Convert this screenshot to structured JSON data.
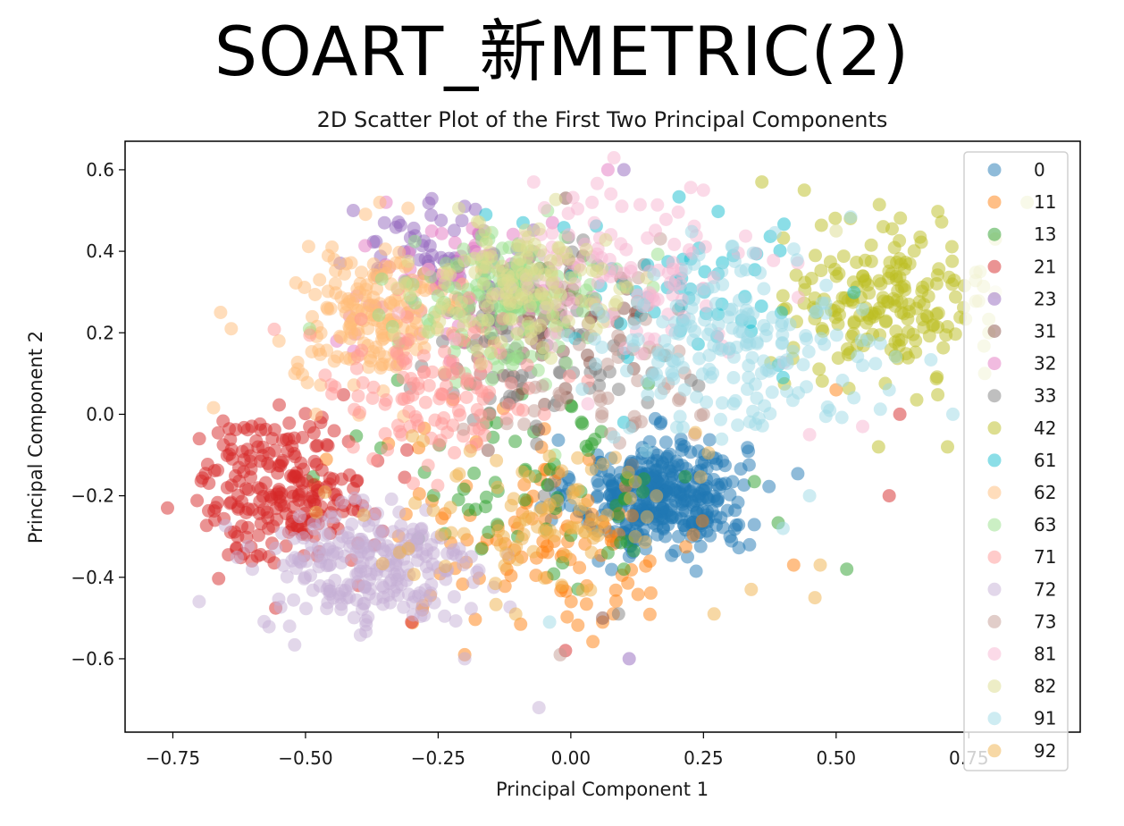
{
  "page_title": "SOART_新METRIC(2)",
  "chart_data": {
    "type": "scatter",
    "title": "2D Scatter Plot of the First Two Principal Components",
    "xlabel": "Principal Component 1",
    "ylabel": "Principal Component 2",
    "xlim": [
      -0.84,
      0.96
    ],
    "ylim": [
      -0.78,
      0.67
    ],
    "xticks": [
      -0.75,
      -0.5,
      -0.25,
      0.0,
      0.25,
      0.5,
      0.75
    ],
    "xtick_labels": [
      "−0.75",
      "−0.50",
      "−0.25",
      "0.00",
      "0.25",
      "0.50",
      "0.75"
    ],
    "yticks": [
      -0.6,
      -0.4,
      -0.2,
      0.0,
      0.2,
      0.4,
      0.6
    ],
    "ytick_labels": [
      "−0.6",
      "−0.4",
      "−0.2",
      "0.0",
      "0.2",
      "0.4",
      "0.6"
    ],
    "grid": false,
    "legend_position": "right",
    "marker_alpha": 0.5,
    "series": [
      {
        "name": "0",
        "color": "#1f77b4",
        "cluster": {
          "cx": 0.17,
          "cy": -0.2,
          "sx": 0.08,
          "sy": 0.07,
          "n": 360
        },
        "points": [
          [
            0.05,
            -0.1
          ],
          [
            0.12,
            -0.3
          ],
          [
            0.28,
            -0.18
          ],
          [
            0.3,
            -0.3
          ],
          [
            0.22,
            -0.35
          ],
          [
            -0.02,
            -0.2
          ]
        ]
      },
      {
        "name": "11",
        "color": "#ff7f0e",
        "cluster": {
          "cx": -0.05,
          "cy": -0.3,
          "sx": 0.16,
          "sy": 0.12,
          "n": 110
        },
        "points": [
          [
            -0.2,
            -0.59
          ],
          [
            0.08,
            -0.49
          ],
          [
            0.06,
            -0.51
          ],
          [
            0.42,
            -0.37
          ],
          [
            0.5,
            0.06
          ],
          [
            -0.28,
            -0.48
          ]
        ]
      },
      {
        "name": "13",
        "color": "#2ca02c",
        "cluster": {
          "cx": -0.05,
          "cy": -0.15,
          "sx": 0.15,
          "sy": 0.13,
          "n": 70
        },
        "points": [
          [
            0.52,
            -0.38
          ],
          [
            0.07,
            -0.34
          ],
          [
            0.1,
            -0.38
          ],
          [
            -0.1,
            -0.3
          ]
        ]
      },
      {
        "name": "21",
        "color": "#d62728",
        "cluster": {
          "cx": -0.54,
          "cy": -0.18,
          "sx": 0.08,
          "sy": 0.09,
          "n": 230
        },
        "points": [
          [
            -0.76,
            -0.23
          ],
          [
            -0.7,
            -0.06
          ],
          [
            -0.63,
            -0.33
          ],
          [
            -0.4,
            -0.42
          ],
          [
            -0.01,
            -0.58
          ],
          [
            0.6,
            -0.2
          ],
          [
            0.62,
            0.0
          ],
          [
            -0.3,
            -0.51
          ]
        ]
      },
      {
        "name": "23",
        "color": "#9467bd",
        "cluster": {
          "cx": -0.25,
          "cy": 0.4,
          "sx": 0.08,
          "sy": 0.05,
          "n": 55
        },
        "points": [
          [
            -0.41,
            0.5
          ],
          [
            -0.2,
            0.51
          ],
          [
            0.1,
            0.6
          ],
          [
            0.11,
            -0.6
          ]
        ]
      },
      {
        "name": "31",
        "color": "#8c564b",
        "cluster": {
          "cx": -0.05,
          "cy": 0.22,
          "sx": 0.11,
          "sy": 0.11,
          "n": 70
        },
        "points": [
          [
            0.06,
            -0.5
          ],
          [
            0.1,
            0.26
          ]
        ]
      },
      {
        "name": "32",
        "color": "#e377c2",
        "cluster": {
          "cx": -0.22,
          "cy": 0.3,
          "sx": 0.1,
          "sy": 0.09,
          "n": 70
        },
        "points": [
          [
            0.07,
            0.6
          ]
        ]
      },
      {
        "name": "33",
        "color": "#7f7f7f",
        "cluster": {
          "cx": -0.08,
          "cy": 0.15,
          "sx": 0.11,
          "sy": 0.12,
          "n": 80
        },
        "points": [
          [
            0.09,
            -0.49
          ],
          [
            -0.05,
            -0.2
          ]
        ]
      },
      {
        "name": "42",
        "color": "#bcbd22",
        "cluster": {
          "cx": 0.6,
          "cy": 0.28,
          "sx": 0.09,
          "sy": 0.09,
          "n": 190
        },
        "points": [
          [
            0.86,
            0.52
          ],
          [
            0.8,
            0.43
          ],
          [
            0.78,
            0.1
          ],
          [
            0.71,
            -0.08
          ],
          [
            0.44,
            0.55
          ],
          [
            0.36,
            0.57
          ],
          [
            0.58,
            -0.08
          ]
        ]
      },
      {
        "name": "61",
        "color": "#17becf",
        "cluster": {
          "cx": 0.22,
          "cy": 0.3,
          "sx": 0.12,
          "sy": 0.1,
          "n": 55
        },
        "points": [
          [
            -0.16,
            0.49
          ],
          [
            -0.09,
            0.47
          ],
          [
            0.4,
            0.09
          ],
          [
            0.1,
            -0.02
          ]
        ]
      },
      {
        "name": "62",
        "color": "#ffbb78",
        "cluster": {
          "cx": -0.36,
          "cy": 0.24,
          "sx": 0.08,
          "sy": 0.08,
          "n": 190
        },
        "points": [
          [
            -0.66,
            0.25
          ],
          [
            -0.64,
            0.21
          ],
          [
            -0.55,
            0.18
          ],
          [
            -0.52,
            0.1
          ],
          [
            -0.48,
            0.0
          ],
          [
            -0.36,
            0.52
          ],
          [
            -0.45,
            0.41
          ]
        ]
      },
      {
        "name": "63",
        "color": "#98df8a",
        "cluster": {
          "cx": -0.12,
          "cy": 0.28,
          "sx": 0.09,
          "sy": 0.08,
          "n": 160
        },
        "points": [
          [
            -0.03,
            -0.1
          ],
          [
            -0.2,
            0.1
          ]
        ]
      },
      {
        "name": "71",
        "color": "#ff9896",
        "cluster": {
          "cx": -0.26,
          "cy": 0.05,
          "sx": 0.11,
          "sy": 0.1,
          "n": 120
        },
        "points": [
          [
            -0.45,
            0.05
          ],
          [
            -0.05,
            0.0
          ]
        ]
      },
      {
        "name": "72",
        "color": "#c5b0d5",
        "cluster": {
          "cx": -0.38,
          "cy": -0.38,
          "sx": 0.1,
          "sy": 0.08,
          "n": 240
        },
        "points": [
          [
            -0.06,
            -0.72
          ],
          [
            -0.6,
            -0.38
          ],
          [
            -0.53,
            -0.52
          ],
          [
            -0.2,
            -0.6
          ]
        ]
      },
      {
        "name": "73",
        "color": "#c49c94",
        "cluster": {
          "cx": 0.05,
          "cy": 0.12,
          "sx": 0.12,
          "sy": 0.12,
          "n": 55
        },
        "points": [
          [
            -0.02,
            -0.59
          ],
          [
            0.25,
            0.0
          ]
        ]
      },
      {
        "name": "81",
        "color": "#f7b6d2",
        "cluster": {
          "cx": 0.1,
          "cy": 0.35,
          "sx": 0.14,
          "sy": 0.1,
          "n": 120
        },
        "points": [
          [
            -0.07,
            0.57
          ],
          [
            0.04,
            0.52
          ],
          [
            0.45,
            -0.05
          ],
          [
            0.55,
            -0.03
          ],
          [
            0.25,
            0.55
          ]
        ]
      },
      {
        "name": "82",
        "color": "#dbdb8d",
        "cluster": {
          "cx": -0.08,
          "cy": 0.3,
          "sx": 0.1,
          "sy": 0.08,
          "n": 130
        },
        "points": [
          [
            0.5,
            0.45
          ],
          [
            0.8,
            0.3
          ]
        ]
      },
      {
        "name": "91",
        "color": "#9edae5",
        "cluster": {
          "cx": 0.3,
          "cy": 0.18,
          "sx": 0.12,
          "sy": 0.11,
          "n": 190
        },
        "points": [
          [
            0.55,
            0.12
          ],
          [
            0.6,
            0.06
          ],
          [
            0.45,
            -0.2
          ],
          [
            0.4,
            -0.28
          ],
          [
            -0.04,
            -0.51
          ],
          [
            0.72,
            0.0
          ]
        ]
      },
      {
        "name": "92",
        "color": "#f0b14b",
        "cluster": {
          "cx": -0.05,
          "cy": -0.25,
          "sx": 0.13,
          "sy": 0.1,
          "n": 90
        },
        "points": [
          [
            0.27,
            -0.49
          ],
          [
            0.34,
            -0.43
          ],
          [
            0.46,
            -0.45
          ],
          [
            0.47,
            -0.37
          ]
        ]
      }
    ]
  }
}
